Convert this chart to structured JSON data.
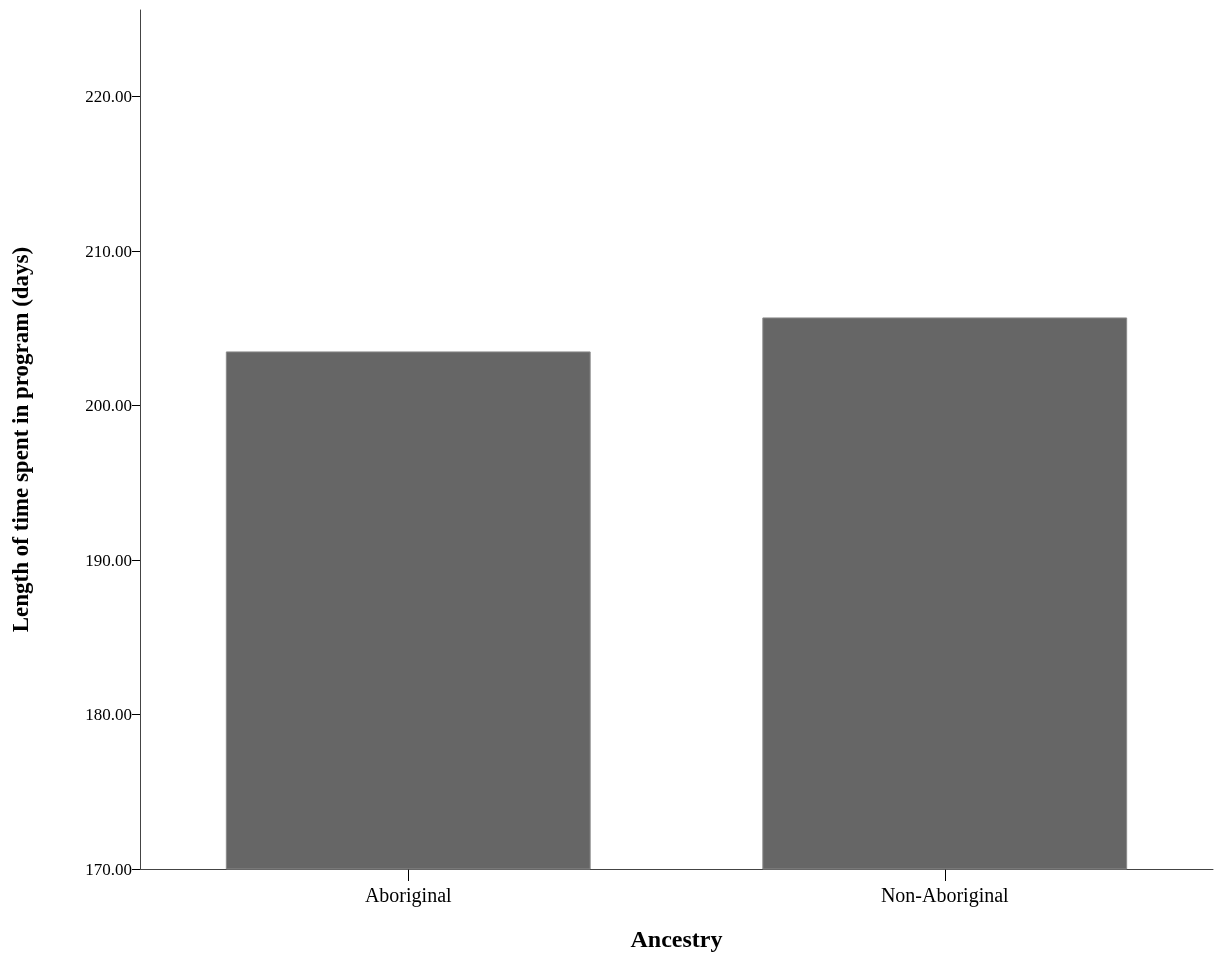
{
  "chart_data": {
    "type": "bar",
    "xlabel": "Ancestry",
    "ylabel": "Length of time spent in program (days)",
    "categories": [
      "Aboriginal",
      "Non-Aboriginal"
    ],
    "values": [
      203.5,
      205.7
    ],
    "color": "#666666",
    "ylim": [
      170,
      225.6
    ],
    "yticks": [
      {
        "value": 170,
        "label": "170.00"
      },
      {
        "value": 180,
        "label": "180.00"
      },
      {
        "value": 190,
        "label": "190.00"
      },
      {
        "value": 200,
        "label": "200.00"
      },
      {
        "value": 210,
        "label": "210.00"
      },
      {
        "value": 220,
        "label": "220.00"
      }
    ],
    "grid": false
  }
}
